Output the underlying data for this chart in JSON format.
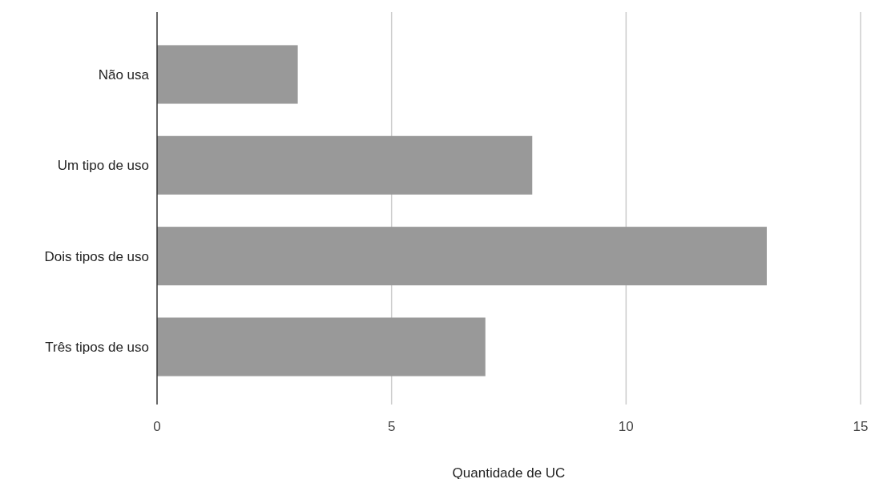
{
  "chart_data": {
    "type": "bar",
    "orientation": "horizontal",
    "categories": [
      "Não usa",
      "Um tipo de uso",
      "Dois tipos de uso",
      "Três tipos de uso"
    ],
    "values": [
      3,
      8,
      13,
      7
    ],
    "color": "#999999",
    "xlim": [
      0,
      15
    ],
    "xticks": [
      0,
      5,
      10,
      15
    ],
    "xlabel": "Quantidade de UC",
    "grid": "x"
  }
}
